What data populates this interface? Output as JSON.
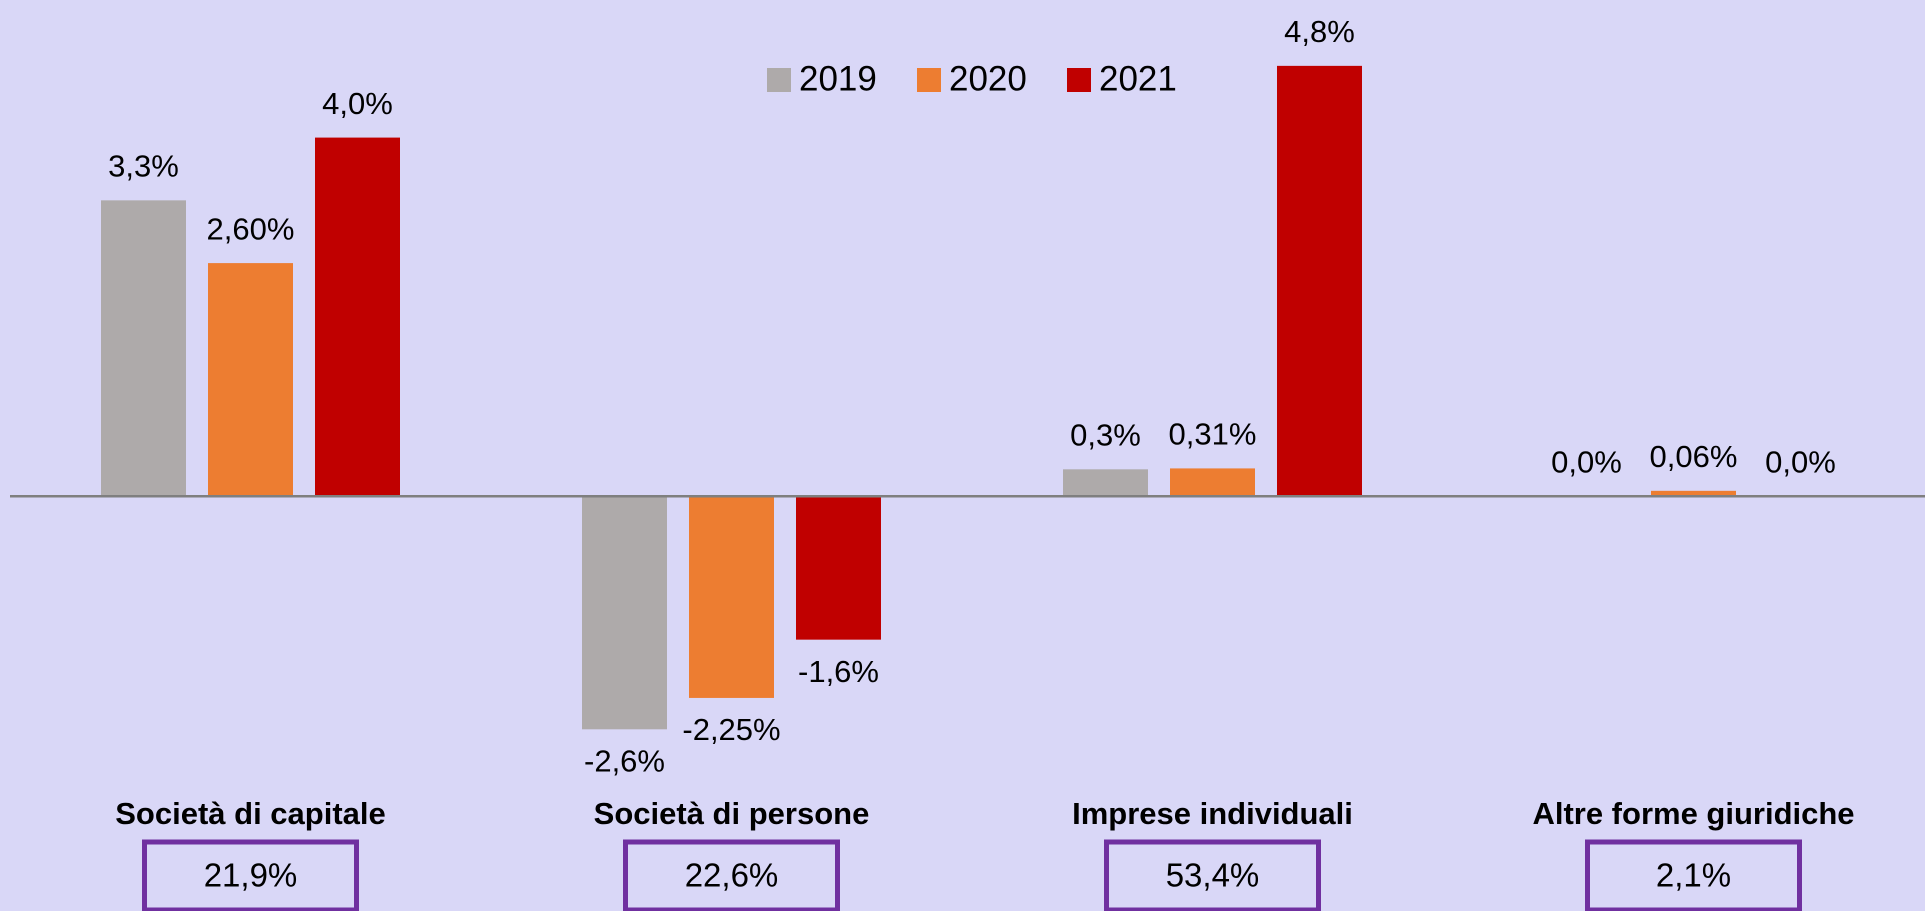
{
  "chart_data": {
    "type": "bar",
    "categories": [
      "Società di capitale",
      "Società di persone",
      "Imprese individuali",
      "Altre forme giuridiche"
    ],
    "category_notes": [
      "21,9%",
      "22,6%",
      "53,4%",
      "2,1%"
    ],
    "series": [
      {
        "name": "2019",
        "color": "#aeaaaa",
        "values": [
          3.3,
          -2.6,
          0.3,
          0.0
        ],
        "value_labels": [
          "3,3%",
          "-2,6%",
          "0,3%",
          "0,0%"
        ]
      },
      {
        "name": "2020",
        "color": "#ed7d31",
        "values": [
          2.6,
          -2.25,
          0.31,
          0.06
        ],
        "value_labels": [
          "2,60%",
          "-2,25%",
          "0,31%",
          "0,06%"
        ]
      },
      {
        "name": "2021",
        "color": "#c00000",
        "values": [
          4.0,
          -1.6,
          4.8,
          0.0
        ],
        "value_labels": [
          "4,0%",
          "-1,6%",
          "4,8%",
          "0,0%"
        ]
      }
    ],
    "ylim": [
      -3.5,
      5.2
    ],
    "legend": "top"
  }
}
